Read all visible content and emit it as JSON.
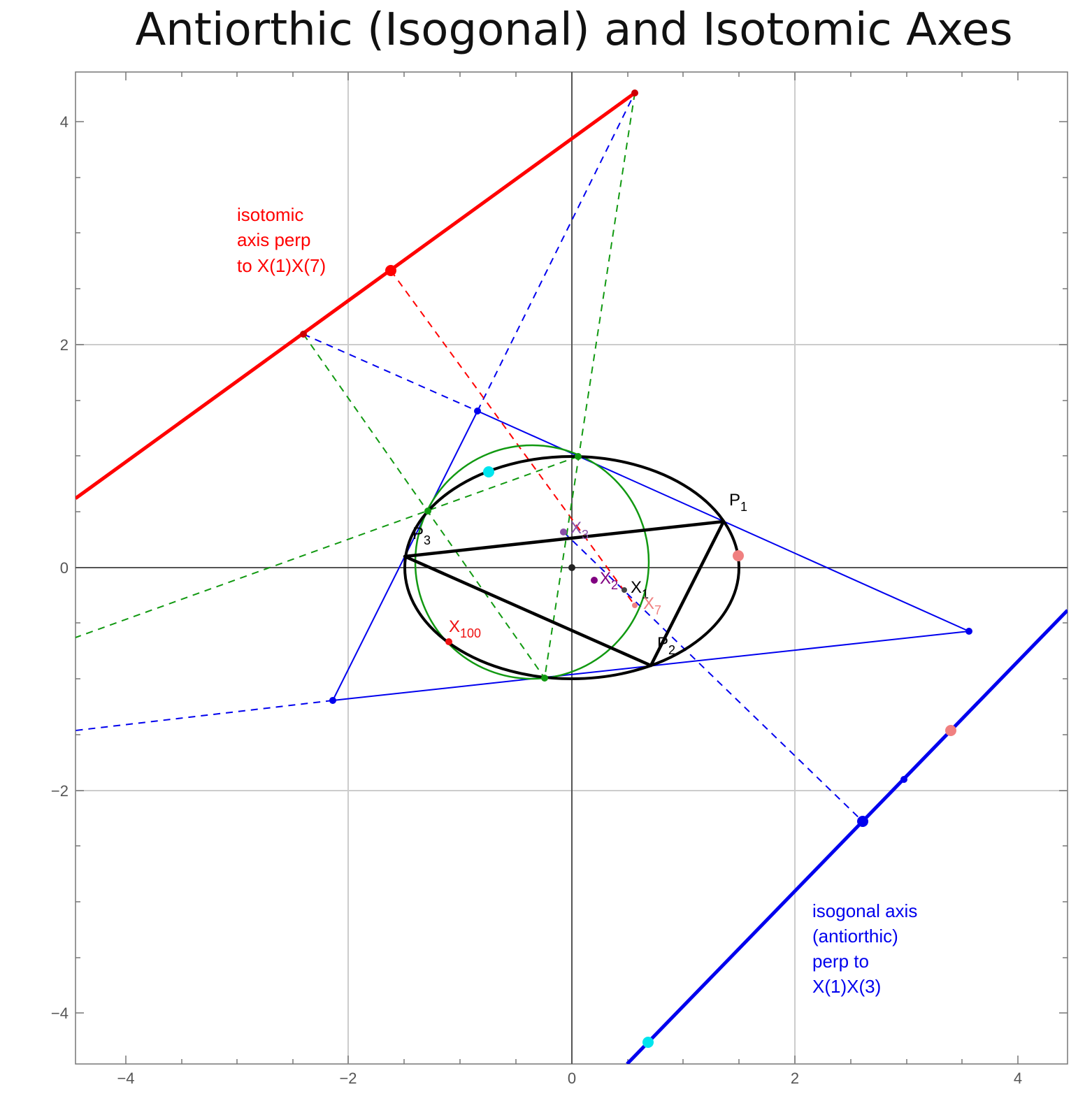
{
  "title": "Antiorthic (Isogonal) and Isotomic Axes",
  "x_ticks": [
    "−4",
    "−2",
    "0",
    "2",
    "4"
  ],
  "y_ticks": [
    "4",
    "2",
    "0",
    "−2",
    "−4"
  ],
  "point_labels": {
    "P1": {
      "main": "P",
      "sub": "1"
    },
    "P2": {
      "main": "P",
      "sub": "2"
    },
    "P3": {
      "main": "P",
      "sub": "3"
    },
    "X1": {
      "main": "X",
      "sub": "1"
    },
    "X2": {
      "main": "X",
      "sub": "2"
    },
    "X3": {
      "main": "X",
      "sub": "3"
    },
    "X7": {
      "main": "X",
      "sub": "7"
    },
    "X100": {
      "main": "X",
      "sub": "100"
    }
  },
  "annotations": {
    "isotomic": [
      "isotomic",
      "axis perp",
      "to X(1)X(7)"
    ],
    "isogonal": [
      "isogonal axis",
      "(antiorthic)",
      "perp to",
      "X(1)X(3)"
    ]
  },
  "colors": {
    "isotomic_axis": "#ff0000",
    "isogonal_axis": "#0000ee",
    "triangle": "#000000",
    "circle": "#119911",
    "x7_salmon": "#f08080",
    "cyan": "#00e5ee",
    "purple": "#800080"
  }
}
